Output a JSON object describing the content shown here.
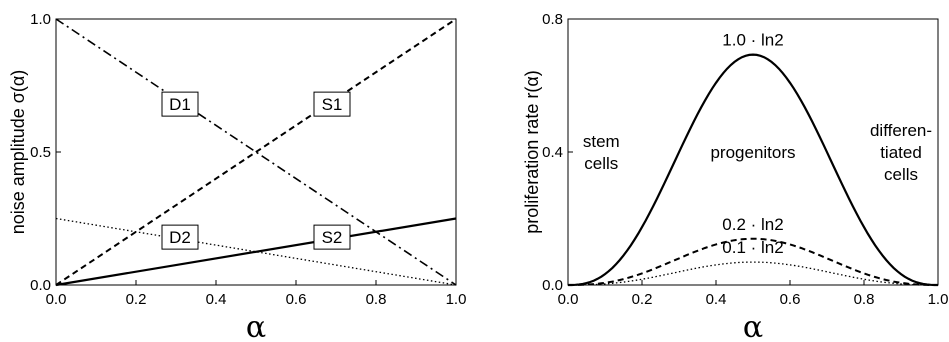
{
  "chart_data": [
    {
      "type": "line",
      "xlabel": "α",
      "ylabel": "noise amplitude σ(α)",
      "xlim": [
        0,
        1
      ],
      "ylim": [
        0,
        1
      ],
      "xticks": [
        "0.0",
        "0.2",
        "0.4",
        "0.6",
        "0.8",
        "1.0"
      ],
      "yticks": [
        "0.0",
        "0.5",
        "1.0"
      ],
      "grid": false,
      "series": [
        {
          "name": "D1",
          "style": "dash-dot",
          "x": [
            0,
            1
          ],
          "y": [
            1.0,
            0.0
          ]
        },
        {
          "name": "S1",
          "style": "dashed",
          "x": [
            0,
            1
          ],
          "y": [
            0.0,
            1.0
          ]
        },
        {
          "name": "D2",
          "style": "dotted",
          "x": [
            0,
            1
          ],
          "y": [
            0.25,
            0.0
          ]
        },
        {
          "name": "S2",
          "style": "solid",
          "x": [
            0,
            1
          ],
          "y": [
            0.0,
            0.25
          ]
        }
      ],
      "annotations": [
        {
          "text": "D1",
          "x": 0.31,
          "y": 0.68
        },
        {
          "text": "S1",
          "x": 0.69,
          "y": 0.68
        },
        {
          "text": "D2",
          "x": 0.31,
          "y": 0.18
        },
        {
          "text": "S2",
          "x": 0.69,
          "y": 0.18
        }
      ]
    },
    {
      "type": "line",
      "xlabel": "α",
      "ylabel": "proliferation rate r(α)",
      "xlim": [
        0,
        1
      ],
      "ylim": [
        0,
        0.8
      ],
      "xticks": [
        "0.0",
        "0.2",
        "0.4",
        "0.6",
        "0.8",
        "1.0"
      ],
      "yticks": [
        "0.0",
        "0.4",
        "0.8"
      ],
      "grid": false,
      "series": [
        {
          "name": "1.0 · ln2",
          "style": "solid",
          "peak": 0.693
        },
        {
          "name": "0.2 · ln2",
          "style": "dashed",
          "peak": 0.139
        },
        {
          "name": "0.1 · ln2",
          "style": "dotted",
          "peak": 0.069
        }
      ],
      "region_labels": [
        {
          "lines": [
            "stem",
            "cells"
          ],
          "x": 0.09,
          "y": 0.4
        },
        {
          "lines": [
            "progenitors"
          ],
          "x": 0.5,
          "y": 0.4
        },
        {
          "lines": [
            "differen-",
            "tiated",
            "cells"
          ],
          "x": 0.9,
          "y": 0.4
        }
      ]
    }
  ]
}
